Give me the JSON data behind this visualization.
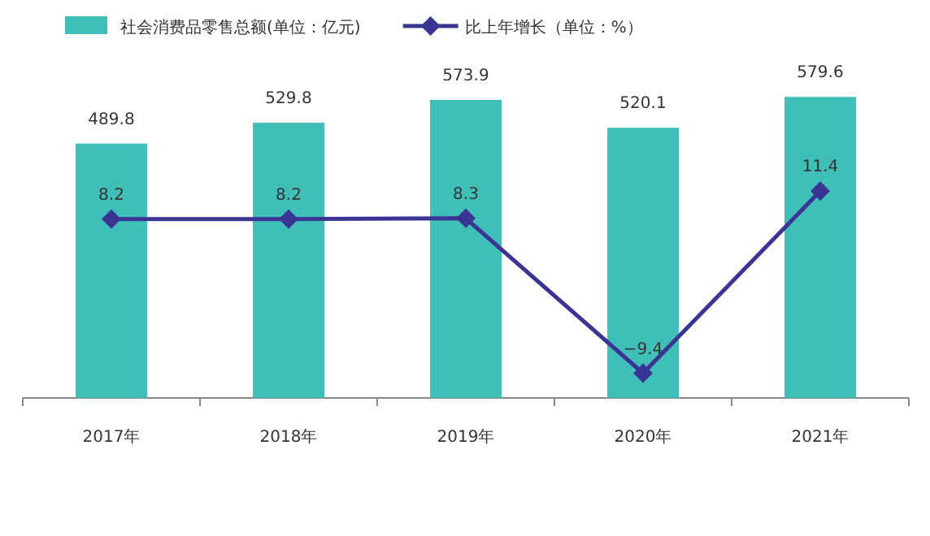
{
  "chart_data": {
    "type": "bar",
    "categories": [
      "2017年",
      "2018年",
      "2019年",
      "2020年",
      "2021年"
    ],
    "series": [
      {
        "name": "社会消费品零售总额(单位：亿元)",
        "type": "bar",
        "color": "#40bfb9",
        "values": [
          489.8,
          529.8,
          573.9,
          520.1,
          579.6
        ]
      },
      {
        "name": "比上年增长（单位：%）",
        "type": "line",
        "axis": "y2",
        "color": "#3a3593",
        "marker": "diamond",
        "values": [
          8.2,
          8.2,
          8.3,
          -9.4,
          11.4
        ]
      }
    ],
    "tick_labels": "x",
    "data_labels": true,
    "legend": "top",
    "grid": false
  }
}
